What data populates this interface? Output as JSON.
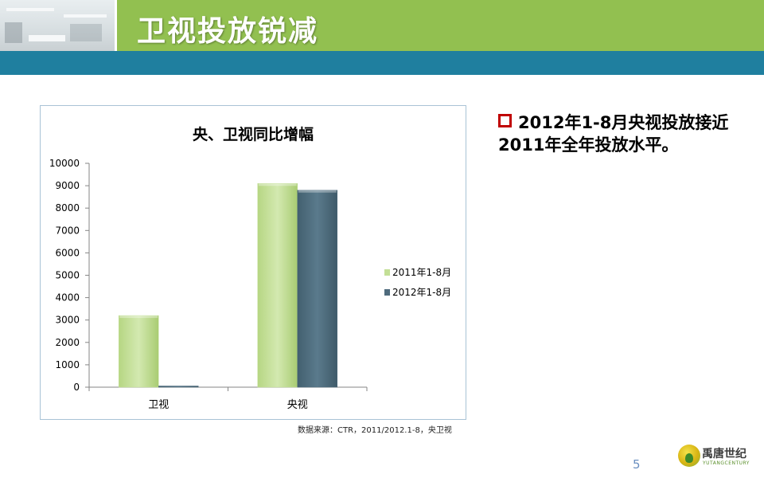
{
  "header": {
    "title": "卫视投放锐减"
  },
  "chart_data": {
    "type": "bar",
    "title": "央、卫视同比增幅",
    "categories": [
      "卫视",
      "央视"
    ],
    "series": [
      {
        "name": "2011年1-8月",
        "values": [
          3200,
          9100
        ],
        "color": "#c3df96"
      },
      {
        "name": "2012年1-8月",
        "values": [
          50,
          8800
        ],
        "color": "#4f6b7d"
      }
    ],
    "ylim": [
      0,
      10000
    ],
    "yticks": [
      0,
      1000,
      2000,
      3000,
      4000,
      5000,
      6000,
      7000,
      8000,
      9000,
      10000
    ],
    "legend_position": "right",
    "grid": false
  },
  "source_note": "数据来源：CTR，2011/2012.1-8，央卫视",
  "bullet": {
    "text": "2012年1-8月央视投放接近2011年全年投放水平。"
  },
  "page_number": "5",
  "logo": {
    "name": "禹唐世纪",
    "sub": "YUTANGCENTURY"
  },
  "colors": {
    "header_green": "#92c050",
    "header_blue": "#1f7f9f",
    "bullet_red": "#c00000"
  }
}
